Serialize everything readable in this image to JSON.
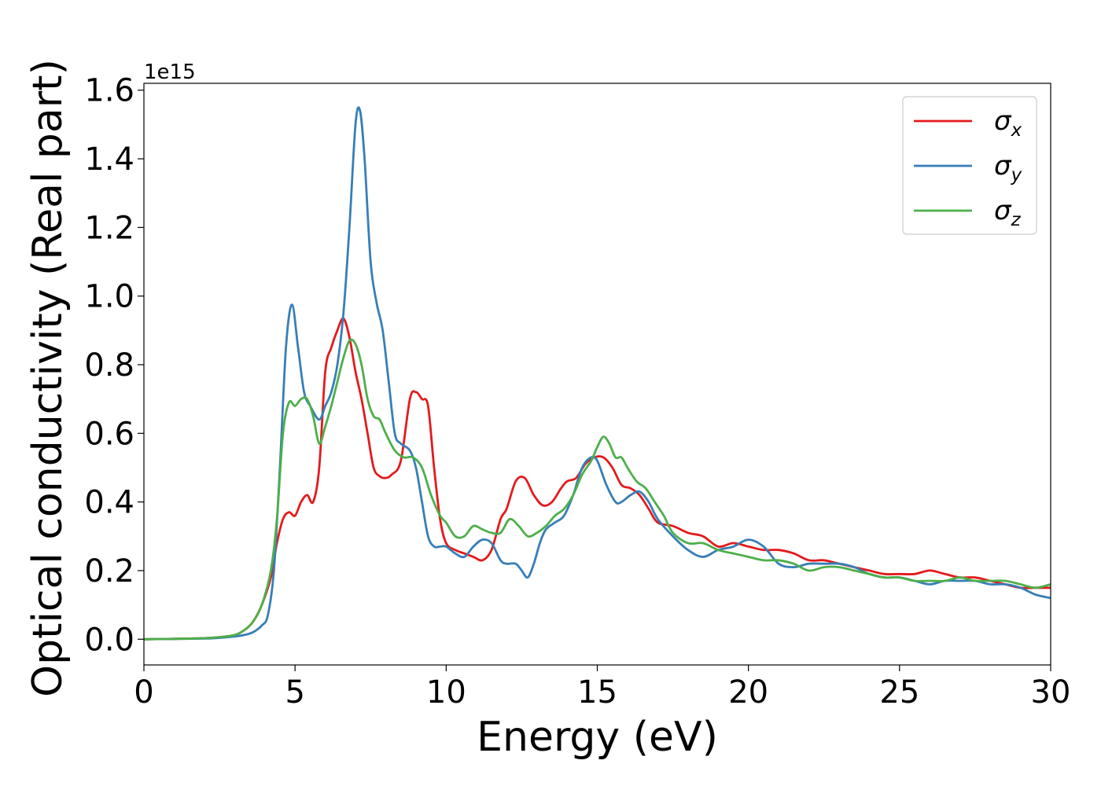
{
  "chart_data": {
    "type": "line",
    "xlabel": "Energy (eV)",
    "ylabel": "Optical conductivity (Real part)",
    "y_offset_text": "1e15",
    "xlim": [
      0,
      30
    ],
    "ylim": [
      -0.075,
      1.62
    ],
    "x_ticks": [
      0,
      5,
      10,
      15,
      20,
      25,
      30
    ],
    "x_tick_labels": [
      "0",
      "5",
      "10",
      "15",
      "20",
      "25",
      "30"
    ],
    "y_ticks": [
      0.0,
      0.2,
      0.4,
      0.6,
      0.8,
      1.0,
      1.2,
      1.4,
      1.6
    ],
    "y_tick_labels": [
      "0.0",
      "0.2",
      "0.4",
      "0.6",
      "0.8",
      "1.0",
      "1.2",
      "1.4",
      "1.6"
    ],
    "grid": false,
    "legend_position": "top-right",
    "series": [
      {
        "name": "σx",
        "legend_symbol": "σ",
        "legend_subscript": "x",
        "color": "#e41a1c",
        "x": [
          0,
          1,
          2,
          2.5,
          3,
          3.3,
          3.6,
          3.9,
          4.2,
          4.4,
          4.6,
          4.8,
          5.0,
          5.2,
          5.4,
          5.6,
          5.8,
          6.0,
          6.2,
          6.4,
          6.6,
          6.8,
          7.0,
          7.2,
          7.4,
          7.6,
          7.8,
          8.0,
          8.2,
          8.5,
          8.8,
          9.0,
          9.2,
          9.4,
          9.6,
          9.8,
          10.0,
          10.3,
          10.6,
          10.9,
          11.2,
          11.5,
          11.8,
          12.0,
          12.3,
          12.6,
          12.9,
          13.2,
          13.5,
          13.8,
          14.0,
          14.3,
          14.6,
          14.9,
          15.2,
          15.5,
          15.8,
          16.1,
          16.4,
          16.7,
          17.0,
          17.5,
          18.0,
          18.5,
          19.0,
          19.5,
          20.0,
          20.5,
          21.0,
          21.5,
          22.0,
          22.5,
          23.0,
          23.5,
          24.0,
          24.5,
          25.0,
          25.5,
          26.0,
          26.5,
          27.0,
          27.5,
          28.0,
          28.5,
          29.0,
          29.5,
          30.0
        ],
        "y": [
          0,
          0.001,
          0.003,
          0.006,
          0.012,
          0.025,
          0.05,
          0.1,
          0.18,
          0.28,
          0.35,
          0.37,
          0.36,
          0.4,
          0.42,
          0.4,
          0.5,
          0.78,
          0.85,
          0.9,
          0.935,
          0.88,
          0.78,
          0.7,
          0.6,
          0.5,
          0.475,
          0.47,
          0.48,
          0.52,
          0.7,
          0.72,
          0.7,
          0.68,
          0.5,
          0.35,
          0.28,
          0.26,
          0.25,
          0.24,
          0.23,
          0.26,
          0.35,
          0.38,
          0.46,
          0.47,
          0.42,
          0.39,
          0.4,
          0.44,
          0.46,
          0.47,
          0.51,
          0.53,
          0.53,
          0.5,
          0.45,
          0.44,
          0.42,
          0.38,
          0.34,
          0.33,
          0.31,
          0.3,
          0.27,
          0.28,
          0.27,
          0.26,
          0.26,
          0.25,
          0.23,
          0.23,
          0.22,
          0.21,
          0.2,
          0.19,
          0.19,
          0.19,
          0.2,
          0.19,
          0.18,
          0.18,
          0.17,
          0.16,
          0.15,
          0.15,
          0.15
        ]
      },
      {
        "name": "σy",
        "legend_symbol": "σ",
        "legend_subscript": "y",
        "color": "#377eb8",
        "x": [
          0,
          1,
          2,
          2.5,
          3,
          3.3,
          3.6,
          3.9,
          4.1,
          4.3,
          4.5,
          4.7,
          4.9,
          5.1,
          5.3,
          5.5,
          5.8,
          6.0,
          6.2,
          6.4,
          6.6,
          6.8,
          7.0,
          7.15,
          7.3,
          7.5,
          7.7,
          7.9,
          8.1,
          8.3,
          8.5,
          8.8,
          9.0,
          9.2,
          9.4,
          9.6,
          9.8,
          10.0,
          10.3,
          10.6,
          10.9,
          11.2,
          11.5,
          11.8,
          12.0,
          12.3,
          12.5,
          12.7,
          12.9,
          13.1,
          13.3,
          13.6,
          13.9,
          14.2,
          14.5,
          14.8,
          15.0,
          15.3,
          15.6,
          15.8,
          16.1,
          16.4,
          16.7,
          17.0,
          17.5,
          18.0,
          18.5,
          19.0,
          19.5,
          20.0,
          20.5,
          21.0,
          21.5,
          22.0,
          22.5,
          23.0,
          23.5,
          24.0,
          24.5,
          25.0,
          25.5,
          26.0,
          26.5,
          27.0,
          27.5,
          28.0,
          28.5,
          29.0,
          29.5,
          30.0
        ],
        "y": [
          0,
          0.001,
          0.002,
          0.004,
          0.008,
          0.012,
          0.02,
          0.04,
          0.07,
          0.2,
          0.5,
          0.85,
          0.975,
          0.85,
          0.72,
          0.68,
          0.64,
          0.68,
          0.72,
          0.8,
          0.95,
          1.2,
          1.5,
          1.54,
          1.4,
          1.1,
          0.98,
          0.9,
          0.75,
          0.6,
          0.57,
          0.55,
          0.5,
          0.4,
          0.3,
          0.27,
          0.27,
          0.27,
          0.25,
          0.24,
          0.27,
          0.29,
          0.28,
          0.23,
          0.22,
          0.22,
          0.2,
          0.18,
          0.22,
          0.28,
          0.32,
          0.34,
          0.36,
          0.42,
          0.5,
          0.53,
          0.52,
          0.45,
          0.4,
          0.4,
          0.42,
          0.43,
          0.4,
          0.35,
          0.3,
          0.26,
          0.24,
          0.26,
          0.27,
          0.29,
          0.27,
          0.22,
          0.21,
          0.22,
          0.22,
          0.22,
          0.21,
          0.19,
          0.18,
          0.18,
          0.17,
          0.16,
          0.17,
          0.17,
          0.17,
          0.16,
          0.16,
          0.15,
          0.13,
          0.12
        ]
      },
      {
        "name": "σz",
        "legend_symbol": "σ",
        "legend_subscript": "z",
        "color": "#4daf4a",
        "x": [
          0,
          1,
          2,
          2.5,
          3,
          3.3,
          3.6,
          3.9,
          4.2,
          4.4,
          4.6,
          4.8,
          5.0,
          5.2,
          5.4,
          5.6,
          5.8,
          6.0,
          6.2,
          6.4,
          6.6,
          6.8,
          7.0,
          7.2,
          7.4,
          7.6,
          7.8,
          8.0,
          8.3,
          8.6,
          8.9,
          9.2,
          9.5,
          9.8,
          10.0,
          10.3,
          10.6,
          10.9,
          11.2,
          11.5,
          11.8,
          12.1,
          12.4,
          12.7,
          13.0,
          13.3,
          13.6,
          13.9,
          14.2,
          14.5,
          14.8,
          15.0,
          15.2,
          15.4,
          15.6,
          15.8,
          16.0,
          16.3,
          16.6,
          16.9,
          17.2,
          17.5,
          18.0,
          18.5,
          19.0,
          19.5,
          20.0,
          20.5,
          21.0,
          21.5,
          22.0,
          22.5,
          23.0,
          23.5,
          24.0,
          24.5,
          25.0,
          25.5,
          26.0,
          26.5,
          27.0,
          27.5,
          28.0,
          28.5,
          29.0,
          29.5,
          30.0
        ],
        "y": [
          0,
          0.001,
          0.003,
          0.006,
          0.012,
          0.025,
          0.05,
          0.1,
          0.2,
          0.35,
          0.6,
          0.69,
          0.68,
          0.7,
          0.7,
          0.65,
          0.57,
          0.62,
          0.68,
          0.75,
          0.82,
          0.87,
          0.86,
          0.8,
          0.7,
          0.65,
          0.64,
          0.6,
          0.55,
          0.53,
          0.53,
          0.5,
          0.42,
          0.36,
          0.34,
          0.3,
          0.3,
          0.33,
          0.32,
          0.31,
          0.31,
          0.35,
          0.33,
          0.3,
          0.31,
          0.33,
          0.36,
          0.38,
          0.42,
          0.48,
          0.52,
          0.56,
          0.59,
          0.57,
          0.53,
          0.53,
          0.5,
          0.46,
          0.44,
          0.4,
          0.36,
          0.31,
          0.28,
          0.28,
          0.26,
          0.25,
          0.24,
          0.23,
          0.23,
          0.22,
          0.2,
          0.21,
          0.21,
          0.2,
          0.19,
          0.18,
          0.18,
          0.17,
          0.17,
          0.17,
          0.18,
          0.17,
          0.17,
          0.17,
          0.16,
          0.15,
          0.16
        ]
      }
    ]
  }
}
